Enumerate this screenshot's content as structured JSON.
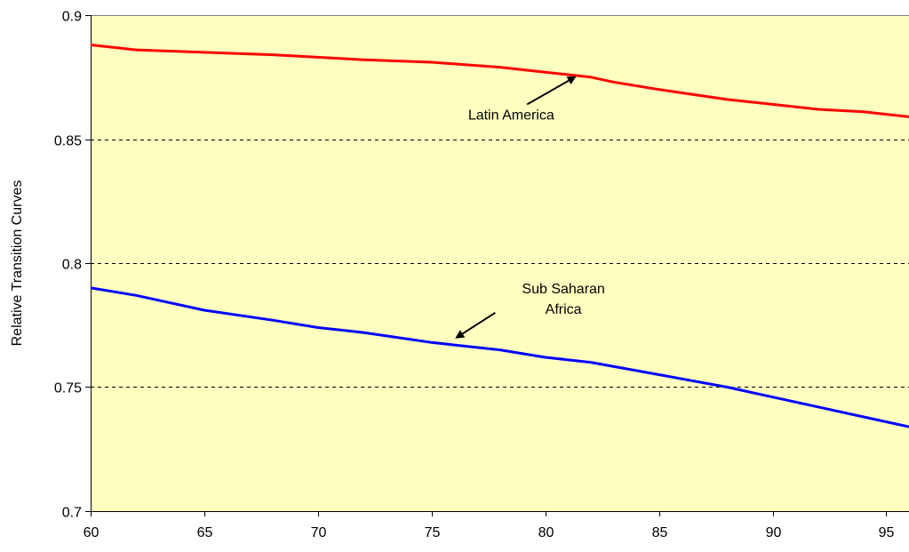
{
  "chart_data": {
    "type": "line",
    "title": "",
    "xlabel": "",
    "ylabel": "Relative Transition Curves",
    "xlim": [
      60,
      96
    ],
    "ylim": [
      0.7,
      0.9
    ],
    "x_ticks": [
      60,
      65,
      70,
      75,
      80,
      85,
      90,
      95
    ],
    "x_tick_labels": [
      "60",
      "65",
      "70",
      "75",
      "80",
      "85",
      "90",
      "95"
    ],
    "y_ticks": [
      0.7,
      0.75,
      0.8,
      0.85,
      0.9
    ],
    "y_tick_labels": [
      "0.7",
      "0.75",
      "0.8",
      "0.85",
      "0.9"
    ],
    "grid": "horizontal dashed",
    "plot_background": "#FFFFC0",
    "series": [
      {
        "color": "#FF0000",
        "x": [
          60,
          62,
          65,
          68,
          70,
          72,
          75,
          78,
          80,
          82,
          83,
          85,
          88,
          90,
          92,
          94,
          96
        ],
        "y": [
          0.888,
          0.886,
          0.885,
          0.884,
          0.883,
          0.882,
          0.881,
          0.879,
          0.877,
          0.875,
          0.873,
          0.87,
          0.866,
          0.864,
          0.862,
          0.861,
          0.859
        ]
      },
      {
        "color": "#0000FF",
        "x": [
          60,
          62,
          65,
          68,
          70,
          72,
          75,
          78,
          80,
          82,
          85,
          88,
          90,
          92,
          94,
          96
        ],
        "y": [
          0.79,
          0.787,
          0.781,
          0.777,
          0.774,
          0.772,
          0.768,
          0.765,
          0.762,
          0.76,
          0.755,
          0.75,
          0.746,
          0.742,
          0.738,
          0.734
        ]
      }
    ],
    "annotations": [
      {
        "lines": [
          "Latin America"
        ],
        "x": 78.5,
        "y": 0.86,
        "arrow_from": [
          79.2,
          0.864
        ],
        "arrow_to": [
          81.3,
          0.875
        ]
      },
      {
        "lines": [
          "Sub Saharan",
          "Africa"
        ],
        "x": 80.8,
        "y": 0.79,
        "arrow_from": [
          77.8,
          0.78
        ],
        "arrow_to": [
          76.1,
          0.77
        ]
      }
    ]
  }
}
